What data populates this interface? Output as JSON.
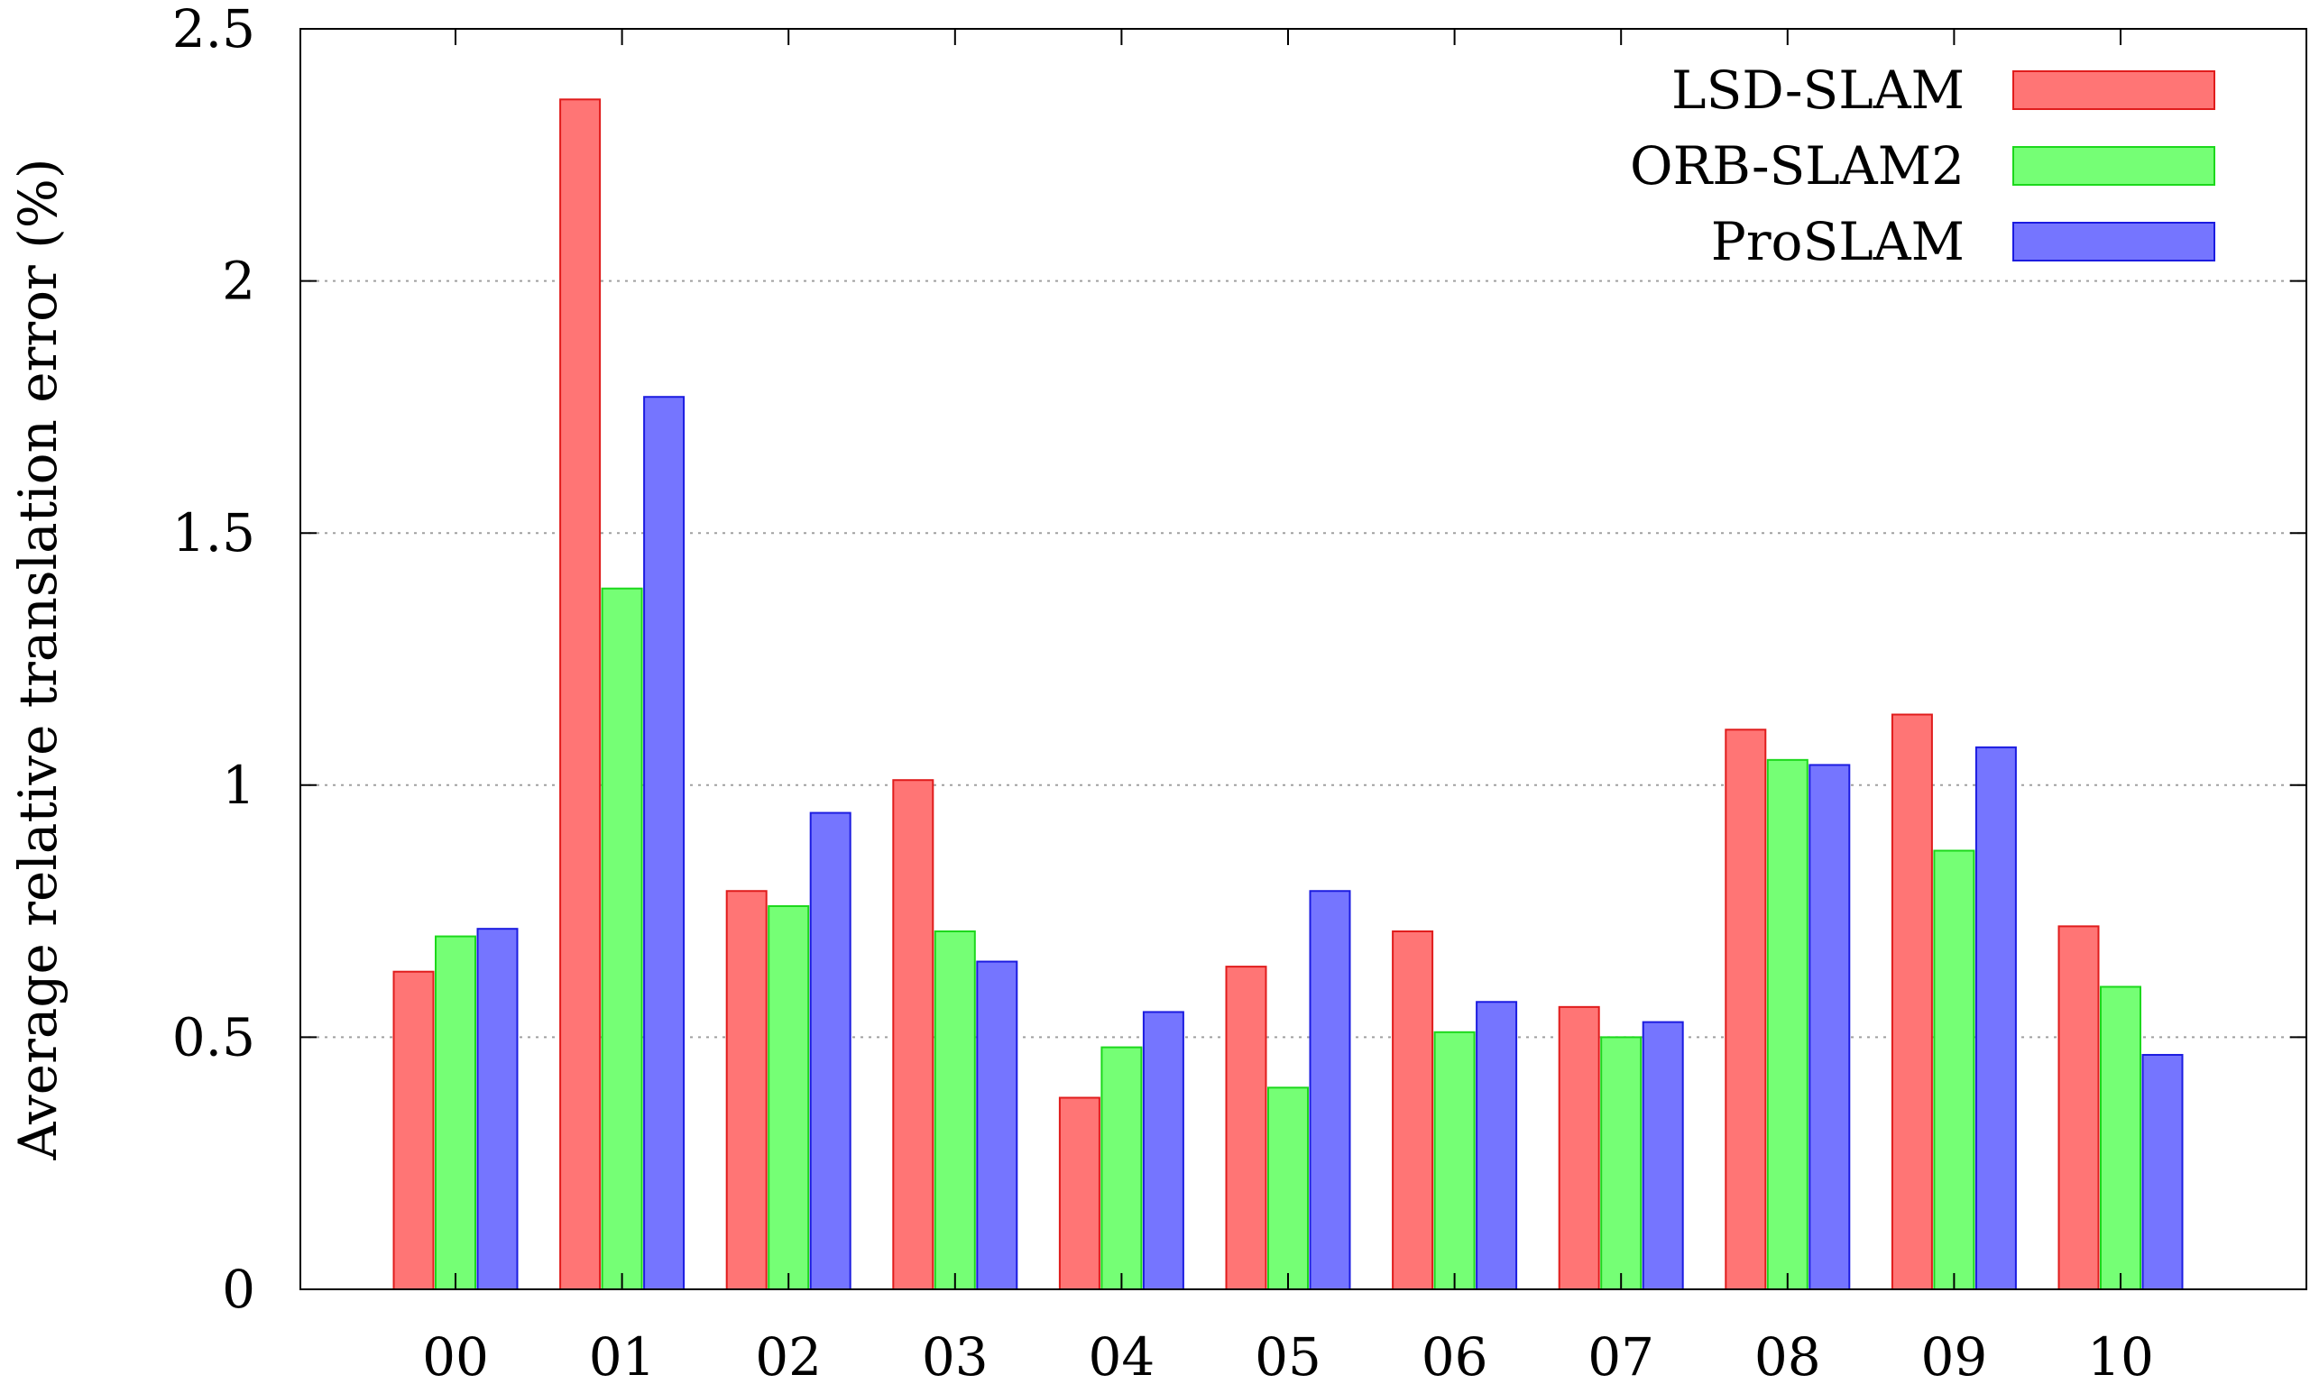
{
  "chart_data": {
    "type": "bar",
    "title": "",
    "xlabel": "",
    "ylabel": "Average relative translation error (%)",
    "ylim": [
      0,
      2.5
    ],
    "yticks": [
      "0",
      "0.5",
      "1",
      "1.5",
      "2",
      "2.5"
    ],
    "grid": "horizontal dotted",
    "legend_position": "top-right",
    "categories": [
      "00",
      "01",
      "02",
      "03",
      "04",
      "05",
      "06",
      "07",
      "08",
      "09",
      "10"
    ],
    "series": [
      {
        "name": "LSD-SLAM",
        "color": "#ff7575",
        "stroke": "#e01c1c",
        "values": [
          0.63,
          2.36,
          0.79,
          1.01,
          0.38,
          0.64,
          0.71,
          0.56,
          1.11,
          1.14,
          0.72
        ]
      },
      {
        "name": "ORB-SLAM2",
        "color": "#75ff75",
        "stroke": "#1cd81c",
        "values": [
          0.7,
          1.39,
          0.76,
          0.71,
          0.48,
          0.4,
          0.51,
          0.5,
          1.05,
          0.87,
          0.6
        ]
      },
      {
        "name": "ProSLAM",
        "color": "#7575ff",
        "stroke": "#1c1ce0",
        "values": [
          0.715,
          1.77,
          0.945,
          0.65,
          0.55,
          0.79,
          0.57,
          0.53,
          1.04,
          1.075,
          0.465
        ]
      }
    ]
  }
}
